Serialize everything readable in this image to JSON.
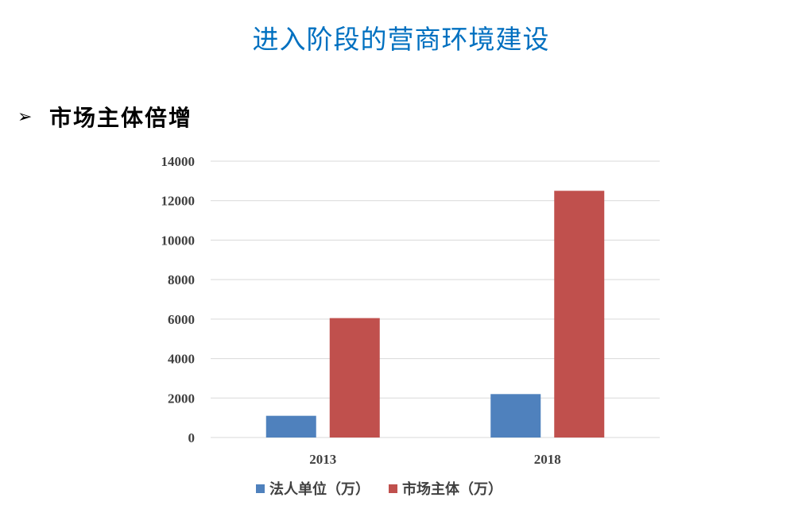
{
  "slide": {
    "title": "进入阶段的营商环境建设",
    "bullet_icon": "arrow-bullet-icon",
    "bullet_text": "市场主体倍增"
  },
  "colors": {
    "title": "#0070c0",
    "series_1": "#4f81bd",
    "series_2": "#c0504d",
    "grid": "#d9d9d9"
  },
  "chart_data": {
    "type": "bar",
    "title": "",
    "xlabel": "",
    "ylabel": "",
    "categories": [
      "2013",
      "2018"
    ],
    "series": [
      {
        "name": "法人单位（万）",
        "values": [
          1100,
          2200
        ],
        "color": "#4f81bd"
      },
      {
        "name": "市场主体（万）",
        "values": [
          6050,
          12500
        ],
        "color": "#c0504d"
      }
    ],
    "ylim": [
      0,
      14000
    ],
    "yticks": [
      0,
      2000,
      4000,
      6000,
      8000,
      10000,
      12000,
      14000
    ],
    "grid": true,
    "legend_position": "bottom"
  }
}
